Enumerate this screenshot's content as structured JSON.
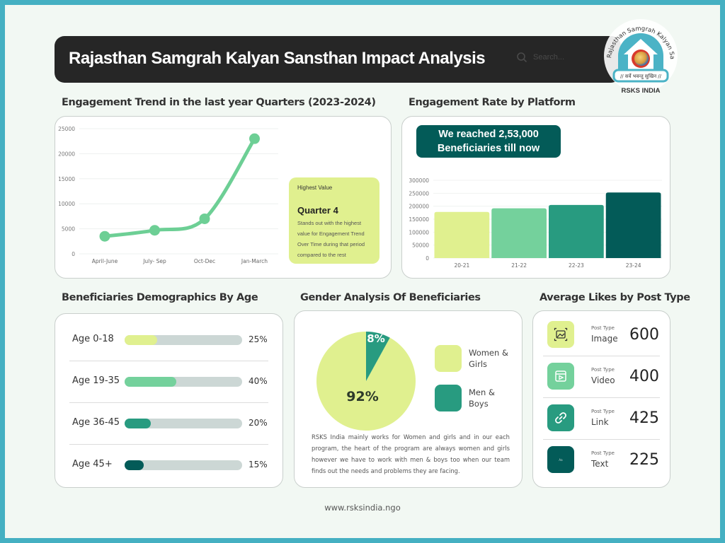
{
  "header": {
    "title": "Rajasthan Samgrah Kalyan Sansthan Impact Analysis",
    "search_placeholder": "Search...",
    "search_icon": "search-icon"
  },
  "logo": {
    "arc_text": "Rajasthan Samgrah Kalyan Sansthan",
    "motto": "// सर्वे भवन्तु सुखिन //",
    "name": "RSKS INDIA"
  },
  "engagement_trend": {
    "title": "Engagement Trend in the last year Quarters (2023-2024)",
    "highlight": {
      "label": "Highest Value",
      "title": "Quarter 4",
      "description": "Stands out with the highest value for Engagement Trend Over Time during that period compared to the rest"
    }
  },
  "engagement_rate": {
    "title": "Engagement Rate by Platform",
    "banner_line1": "We reached 2,53,000",
    "banner_line2": "Beneficiaries till now"
  },
  "demographics": {
    "title": "Beneficiaries Demographics By Age",
    "rows": [
      {
        "label": "Age 0-18",
        "percent_text": "25%",
        "fill": 0.25,
        "color": "#e0f08f"
      },
      {
        "label": "Age 19-35",
        "percent_text": "40%",
        "fill": 0.4,
        "color": "#74d19c"
      },
      {
        "label": "Age 36-45",
        "percent_text": "20%",
        "fill": 0.2,
        "color": "#289b80"
      },
      {
        "label": "Age 45+",
        "percent_text": "15%",
        "fill": 0.15,
        "color": "#035b58"
      }
    ]
  },
  "gender": {
    "title": "Gender Analysis Of Beneficiaries",
    "description": "RSKS India mainly works for Women and girls and in our each program, the heart of the program are always women and girls however we have to work with men & boys too when our team finds out the needs and problems they are facing."
  },
  "post_types": {
    "title": "Average Likes by Post Type",
    "rows": [
      {
        "small": "Post Type",
        "name": "Image",
        "value": "600",
        "icon": "image-icon",
        "color": "#e0f08f"
      },
      {
        "small": "Post Type",
        "name": "Video",
        "value": "400",
        "icon": "video-icon",
        "color": "#74d19c"
      },
      {
        "small": "Post Type",
        "name": "Link",
        "value": "425",
        "icon": "link-icon",
        "color": "#289b80"
      },
      {
        "small": "Post Type",
        "name": "Text",
        "value": "225",
        "icon": "text-icon",
        "color": "#035b58"
      }
    ]
  },
  "footer": {
    "url": "www.rsksindia.ngo"
  },
  "chart_data": [
    {
      "type": "line",
      "title": "Engagement Trend in the last year Quarters (2023-2024)",
      "categories": [
        "April-June",
        "July- Sep",
        "Oct-Dec",
        "Jan-March"
      ],
      "values": [
        3500,
        4700,
        7000,
        23000
      ],
      "ylim": [
        0,
        25000
      ],
      "yticks": [
        "0",
        "5000",
        "10000",
        "15000",
        "20000",
        "25000"
      ],
      "grid": true,
      "color": "#6dcf95"
    },
    {
      "type": "bar",
      "title": "Engagement Rate by Platform",
      "categories": [
        "20-21",
        "21-22",
        "22-23",
        "23-24"
      ],
      "values": [
        178000,
        192000,
        205000,
        253000
      ],
      "colors": [
        "#e0f08f",
        "#74d19c",
        "#289b80",
        "#035b58"
      ],
      "ylim": [
        0,
        300000
      ],
      "yticks": [
        "0",
        "50000",
        "100000",
        "150000",
        "200000",
        "250000",
        "300000"
      ],
      "grid": true
    },
    {
      "type": "pie",
      "title": "Gender Analysis Of Beneficiaries",
      "labels": [
        "Women & Girls",
        "Men & Boys"
      ],
      "legend": [
        "Women &",
        "Girls",
        "Men &",
        "Boys"
      ],
      "values": [
        92,
        8
      ],
      "value_labels": [
        "92%",
        "8%"
      ],
      "colors": [
        "#e0f08f",
        "#289b80"
      ],
      "legend_position": "right"
    }
  ]
}
